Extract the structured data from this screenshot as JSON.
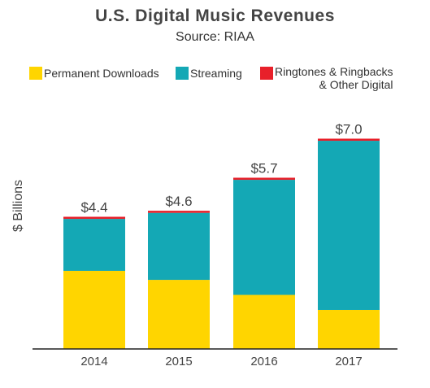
{
  "chart_data": {
    "type": "bar",
    "stacked": true,
    "title": "U.S. Digital Music Revenues",
    "subtitle": "Source: RIAA",
    "ylabel": "$ Billions",
    "xlabel": "",
    "categories": [
      "2014",
      "2015",
      "2016",
      "2017"
    ],
    "ylim": [
      0,
      7.5
    ],
    "grid": false,
    "legend_position": "top",
    "series": [
      {
        "name": "Permanent Downloads",
        "color": "#FFD500",
        "values": [
          2.6,
          2.3,
          1.8,
          1.3
        ]
      },
      {
        "name": "Streaming",
        "color": "#14A8B5",
        "values": [
          1.73,
          2.23,
          3.83,
          5.63
        ]
      },
      {
        "name": "Ringtones & Ringbacks\n& Other Digital",
        "color": "#E8202A",
        "values": [
          0.07,
          0.07,
          0.07,
          0.07
        ]
      }
    ],
    "totals": [
      "$4.4",
      "$4.6",
      "$5.7",
      "$7.0"
    ]
  }
}
